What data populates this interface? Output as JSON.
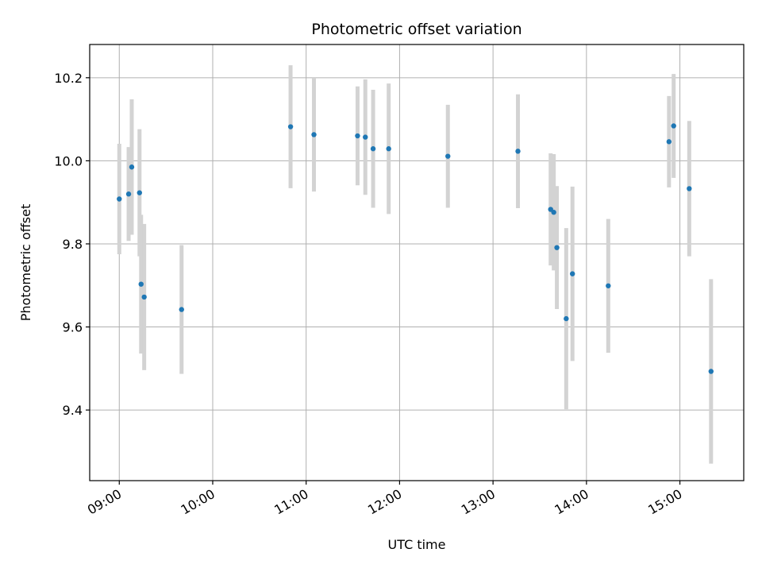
{
  "chart_data": {
    "type": "scatter",
    "title": "Photometric offset variation",
    "xlabel": "UTC time",
    "ylabel": "Photometric offset",
    "x_axis": "time",
    "xlim": [
      "08:41",
      "15:41"
    ],
    "ylim": [
      9.23,
      10.28
    ],
    "x_ticks": [
      "09:00",
      "10:00",
      "11:00",
      "12:00",
      "13:00",
      "14:00",
      "15:00"
    ],
    "y_ticks": [
      9.4,
      9.6,
      9.8,
      10.0,
      10.2
    ],
    "y_tick_labels": [
      "9.4",
      "9.6",
      "9.8",
      "10.0",
      "10.2"
    ],
    "grid": true,
    "colors": {
      "point": "#1f77b4",
      "errorbar": "#d3d3d3",
      "grid": "#b0b0b0"
    },
    "series": [
      {
        "points": [
          {
            "x": "09:00",
            "y": 9.908,
            "err": 0.133
          },
          {
            "x": "09:06",
            "y": 9.92,
            "err": 0.113
          },
          {
            "x": "09:08",
            "y": 9.985,
            "err": 0.163
          },
          {
            "x": "09:13",
            "y": 9.923,
            "err": 0.153
          },
          {
            "x": "09:14",
            "y": 9.703,
            "err": 0.167
          },
          {
            "x": "09:16",
            "y": 9.672,
            "err": 0.176
          },
          {
            "x": "09:40",
            "y": 9.642,
            "err": 0.155
          },
          {
            "x": "10:50",
            "y": 10.082,
            "err": 0.148
          },
          {
            "x": "11:05",
            "y": 10.063,
            "err": 0.137
          },
          {
            "x": "11:33",
            "y": 10.06,
            "err": 0.119
          },
          {
            "x": "11:38",
            "y": 10.057,
            "err": 0.139
          },
          {
            "x": "11:43",
            "y": 10.029,
            "err": 0.142
          },
          {
            "x": "11:53",
            "y": 10.029,
            "err": 0.157
          },
          {
            "x": "12:31",
            "y": 10.011,
            "err": 0.124
          },
          {
            "x": "13:16",
            "y": 10.023,
            "err": 0.137
          },
          {
            "x": "13:37",
            "y": 9.883,
            "err": 0.135
          },
          {
            "x": "13:39",
            "y": 9.876,
            "err": 0.14
          },
          {
            "x": "13:41",
            "y": 9.791,
            "err": 0.148
          },
          {
            "x": "13:47",
            "y": 9.62,
            "err": 0.218
          },
          {
            "x": "13:51",
            "y": 9.728,
            "err": 0.21
          },
          {
            "x": "14:14",
            "y": 9.699,
            "err": 0.161
          },
          {
            "x": "14:53",
            "y": 10.046,
            "err": 0.11
          },
          {
            "x": "14:56",
            "y": 10.084,
            "err": 0.125
          },
          {
            "x": "15:06",
            "y": 9.933,
            "err": 0.163
          },
          {
            "x": "15:20",
            "y": 9.493,
            "err": 0.222
          }
        ]
      }
    ]
  }
}
